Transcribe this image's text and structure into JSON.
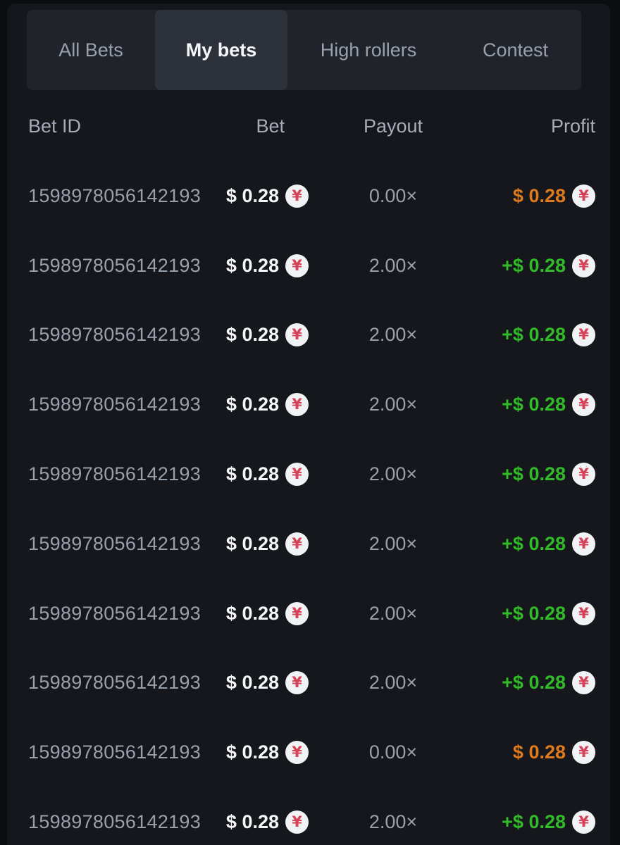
{
  "tabs": [
    {
      "label": "All Bets",
      "active": false
    },
    {
      "label": "My bets",
      "active": true
    },
    {
      "label": "High rollers",
      "active": false
    },
    {
      "label": "Contest",
      "active": false
    }
  ],
  "table": {
    "headers": {
      "bet_id": "Bet ID",
      "bet": "Bet",
      "payout": "Payout",
      "profit": "Profit"
    },
    "rows": [
      {
        "bet_id": "1598978056142193",
        "bet": "$ 0.28",
        "payout": "0.00×",
        "profit": "$ 0.28",
        "win": false
      },
      {
        "bet_id": "1598978056142193",
        "bet": "$ 0.28",
        "payout": "2.00×",
        "profit": "+$ 0.28",
        "win": true
      },
      {
        "bet_id": "1598978056142193",
        "bet": "$ 0.28",
        "payout": "2.00×",
        "profit": "+$ 0.28",
        "win": true
      },
      {
        "bet_id": "1598978056142193",
        "bet": "$ 0.28",
        "payout": "2.00×",
        "profit": "+$ 0.28",
        "win": true
      },
      {
        "bet_id": "1598978056142193",
        "bet": "$ 0.28",
        "payout": "2.00×",
        "profit": "+$ 0.28",
        "win": true
      },
      {
        "bet_id": "1598978056142193",
        "bet": "$ 0.28",
        "payout": "2.00×",
        "profit": "+$ 0.28",
        "win": true
      },
      {
        "bet_id": "1598978056142193",
        "bet": "$ 0.28",
        "payout": "2.00×",
        "profit": "+$ 0.28",
        "win": true
      },
      {
        "bet_id": "1598978056142193",
        "bet": "$ 0.28",
        "payout": "2.00×",
        "profit": "+$ 0.28",
        "win": true
      },
      {
        "bet_id": "1598978056142193",
        "bet": "$ 0.28",
        "payout": "0.00×",
        "profit": "$ 0.28",
        "win": false
      },
      {
        "bet_id": "1598978056142193",
        "bet": "$ 0.28",
        "payout": "2.00×",
        "profit": "+$ 0.28",
        "win": true
      }
    ]
  },
  "icons": {
    "currency_symbol": "¥"
  },
  "colors": {
    "green": "#32bb28",
    "orange": "#de7a1e",
    "coin-red": "#d64257",
    "coin-bg": "#f1f2f4"
  }
}
